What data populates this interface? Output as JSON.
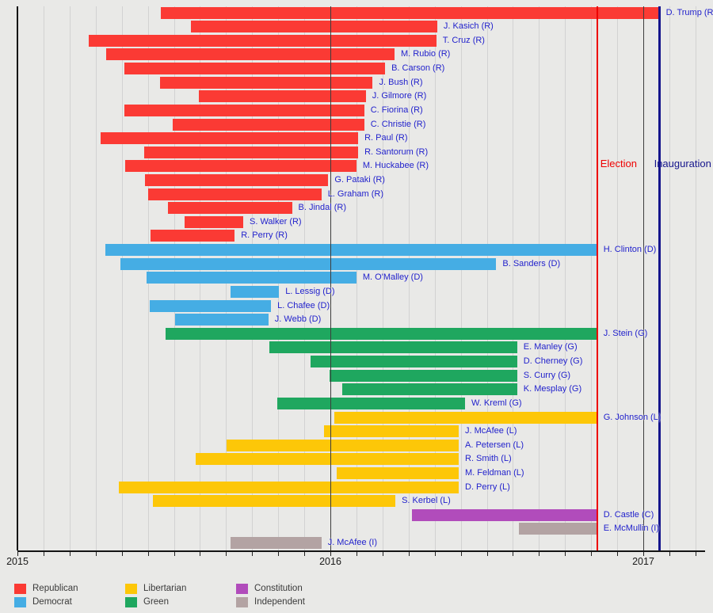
{
  "chart_data": {
    "type": "gantt",
    "description_visible_text_only": true,
    "x_axis": {
      "year_labels": [
        "2015",
        "2016",
        "2017"
      ],
      "years": [
        2015,
        2016,
        2017
      ],
      "months_shown": 27,
      "grid": "monthly"
    },
    "events": [
      {
        "id": "election",
        "label": "Election",
        "date": "2016-11-08",
        "color": "#ee0000",
        "line_width": 2.5
      },
      {
        "id": "inauguration",
        "label": "Inauguration",
        "date": "2017-01-20",
        "color": "#15158c",
        "line_width": 3
      }
    ],
    "parties": {
      "R": {
        "name": "Republican",
        "color": "#fb3a34"
      },
      "D": {
        "name": "Democrat",
        "color": "#45ade4"
      },
      "L": {
        "name": "Libertarian",
        "color": "#fdc708"
      },
      "G": {
        "name": "Green",
        "color": "#1fa75f"
      },
      "C": {
        "name": "Constitution",
        "color": "#b14cbb"
      },
      "I": {
        "name": "Independent",
        "color": "#b3a3a3"
      }
    },
    "legend_order": [
      "R",
      "D",
      "L",
      "G",
      "C",
      "I"
    ],
    "candidates": [
      {
        "label": "D. Trump (R)",
        "party": "R",
        "start": "2015-06-16",
        "end": "2017-01-20"
      },
      {
        "label": "J. Kasich (R)",
        "party": "R",
        "start": "2015-07-21",
        "end": "2016-05-04"
      },
      {
        "label": "T. Cruz (R)",
        "party": "R",
        "start": "2015-03-23",
        "end": "2016-05-03"
      },
      {
        "label": "M. Rubio (R)",
        "party": "R",
        "start": "2015-04-13",
        "end": "2016-03-15"
      },
      {
        "label": "B. Carson (R)",
        "party": "R",
        "start": "2015-05-04",
        "end": "2016-03-04"
      },
      {
        "label": "J. Bush (R)",
        "party": "R",
        "start": "2015-06-15",
        "end": "2016-02-20"
      },
      {
        "label": "J. Gilmore (R)",
        "party": "R",
        "start": "2015-07-30",
        "end": "2016-02-12"
      },
      {
        "label": "C. Fiorina (R)",
        "party": "R",
        "start": "2015-05-04",
        "end": "2016-02-10"
      },
      {
        "label": "C. Christie (R)",
        "party": "R",
        "start": "2015-06-30",
        "end": "2016-02-10"
      },
      {
        "label": "R. Paul (R)",
        "party": "R",
        "start": "2015-04-07",
        "end": "2016-02-03"
      },
      {
        "label": "R. Santorum (R)",
        "party": "R",
        "start": "2015-05-27",
        "end": "2016-02-03"
      },
      {
        "label": "M. Huckabee (R)",
        "party": "R",
        "start": "2015-05-05",
        "end": "2016-02-01"
      },
      {
        "label": "G. Pataki (R)",
        "party": "R",
        "start": "2015-05-28",
        "end": "2015-12-29"
      },
      {
        "label": "L. Graham (R)",
        "party": "R",
        "start": "2015-06-01",
        "end": "2015-12-21"
      },
      {
        "label": "B. Jindal (R)",
        "party": "R",
        "start": "2015-06-24",
        "end": "2015-11-17"
      },
      {
        "label": "S. Walker (R)",
        "party": "R",
        "start": "2015-07-13",
        "end": "2015-09-21"
      },
      {
        "label": "R. Perry (R)",
        "party": "R",
        "start": "2015-06-04",
        "end": "2015-09-11"
      },
      {
        "label": "H. Clinton (D)",
        "party": "D",
        "start": "2015-04-12",
        "end": "2016-11-08"
      },
      {
        "label": "B. Sanders (D)",
        "party": "D",
        "start": "2015-04-30",
        "end": "2016-07-12"
      },
      {
        "label": "M. O'Malley (D)",
        "party": "D",
        "start": "2015-05-30",
        "end": "2016-02-01"
      },
      {
        "label": "L. Lessig (D)",
        "party": "D",
        "start": "2015-09-06",
        "end": "2015-11-02"
      },
      {
        "label": "L. Chafee (D)",
        "party": "D",
        "start": "2015-06-03",
        "end": "2015-10-23"
      },
      {
        "label": "J. Webb (D)",
        "party": "D",
        "start": "2015-07-02",
        "end": "2015-10-20"
      },
      {
        "label": "J. Stein (G)",
        "party": "G",
        "start": "2015-06-22",
        "end": "2016-11-08"
      },
      {
        "label": "E. Manley (G)",
        "party": "G",
        "start": "2015-10-21",
        "end": "2016-08-06"
      },
      {
        "label": "D. Cherney (G)",
        "party": "G",
        "start": "2015-12-08",
        "end": "2016-08-06"
      },
      {
        "label": "S. Curry (G)",
        "party": "G",
        "start": "2015-12-30",
        "end": "2016-08-06"
      },
      {
        "label": "K. Mesplay (G)",
        "party": "G",
        "start": "2016-01-15",
        "end": "2016-08-06"
      },
      {
        "label": "W. Kreml (G)",
        "party": "G",
        "start": "2015-10-30",
        "end": "2016-06-06"
      },
      {
        "label": "G. Johnson (L)",
        "party": "L",
        "start": "2016-01-06",
        "end": "2016-11-08"
      },
      {
        "label": "J. McAfee (L)",
        "party": "L",
        "start": "2015-12-24",
        "end": "2016-05-29"
      },
      {
        "label": "A. Petersen (L)",
        "party": "L",
        "start": "2015-09-02",
        "end": "2016-05-29"
      },
      {
        "label": "R. Smith (L)",
        "party": "L",
        "start": "2015-07-26",
        "end": "2016-05-29"
      },
      {
        "label": "M. Feldman (L)",
        "party": "L",
        "start": "2016-01-08",
        "end": "2016-05-29"
      },
      {
        "label": "D. Perry (L)",
        "party": "L",
        "start": "2015-04-28",
        "end": "2016-05-29"
      },
      {
        "label": "S. Kerbel (L)",
        "party": "L",
        "start": "2015-06-07",
        "end": "2016-03-16"
      },
      {
        "label": "D. Castle (C)",
        "party": "C",
        "start": "2016-04-05",
        "end": "2016-11-08"
      },
      {
        "label": "E. McMullin (I)",
        "party": "I",
        "start": "2016-08-08",
        "end": "2016-11-08"
      },
      {
        "label": "J. McAfee (I)",
        "party": "I",
        "start": "2015-09-06",
        "end": "2015-12-21"
      }
    ]
  }
}
